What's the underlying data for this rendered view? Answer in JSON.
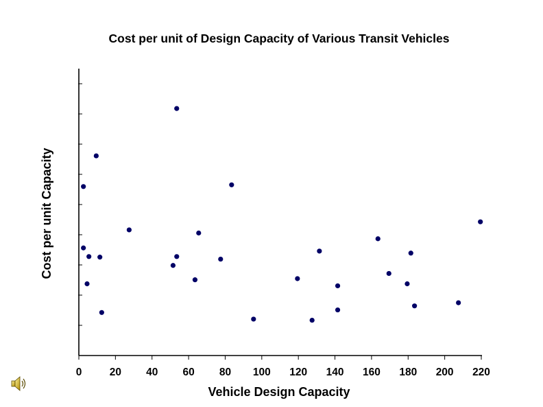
{
  "chart_data": {
    "type": "scatter",
    "title": "Cost per unit of Design Capacity of Various Transit Vehicles",
    "xlabel": "Vehicle Design Capacity",
    "ylabel": "Cost per unit Capacity",
    "xlim": [
      0,
      220
    ],
    "xticks": [
      0,
      20,
      40,
      60,
      80,
      100,
      120,
      140,
      160,
      180,
      200,
      220
    ],
    "ytick_count": 9,
    "grid": false,
    "legend": "none",
    "marker_color": "#000066",
    "points": [
      {
        "x": 2.5,
        "y": 58.9
      },
      {
        "x": 2.5,
        "y": 37.5
      },
      {
        "x": 4.5,
        "y": 25.0
      },
      {
        "x": 5.5,
        "y": 34.5
      },
      {
        "x": 9.5,
        "y": 69.6
      },
      {
        "x": 11.5,
        "y": 34.3
      },
      {
        "x": 12.5,
        "y": 15.0
      },
      {
        "x": 27.5,
        "y": 43.8
      },
      {
        "x": 51.5,
        "y": 31.4
      },
      {
        "x": 53.5,
        "y": 86.1
      },
      {
        "x": 53.5,
        "y": 34.5
      },
      {
        "x": 63.5,
        "y": 26.4
      },
      {
        "x": 65.5,
        "y": 42.7
      },
      {
        "x": 77.5,
        "y": 33.6
      },
      {
        "x": 83.5,
        "y": 59.5
      },
      {
        "x": 95.5,
        "y": 12.7
      },
      {
        "x": 119.5,
        "y": 26.8
      },
      {
        "x": 127.5,
        "y": 12.3
      },
      {
        "x": 131.5,
        "y": 36.4
      },
      {
        "x": 141.5,
        "y": 24.3
      },
      {
        "x": 141.5,
        "y": 15.9
      },
      {
        "x": 163.5,
        "y": 40.7
      },
      {
        "x": 169.5,
        "y": 28.6
      },
      {
        "x": 179.5,
        "y": 25.0
      },
      {
        "x": 181.5,
        "y": 35.7
      },
      {
        "x": 183.5,
        "y": 17.3
      },
      {
        "x": 207.5,
        "y": 18.4
      },
      {
        "x": 219.5,
        "y": 46.6
      }
    ]
  },
  "icons": {
    "speaker": "speaker-icon"
  }
}
